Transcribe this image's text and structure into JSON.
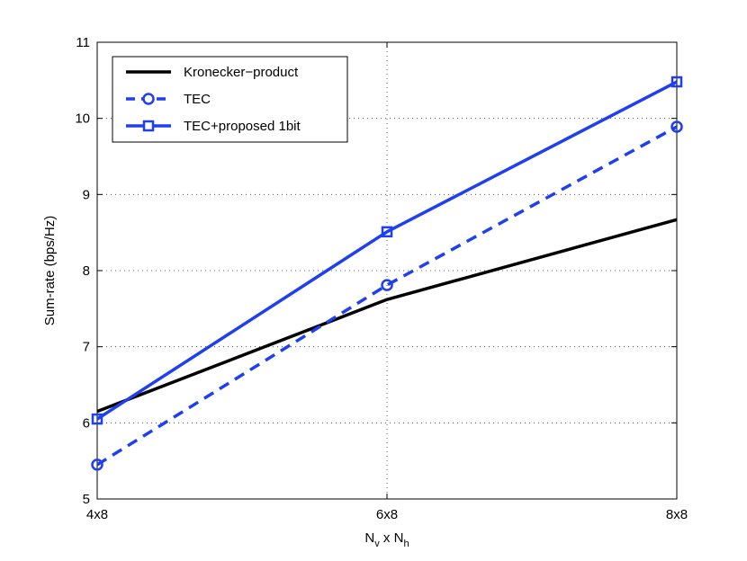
{
  "chart_data": {
    "type": "line",
    "title": "",
    "xlabel": {
      "main1": "N",
      "sub1": "v",
      "mid": " x ",
      "main2": "N",
      "sub2": "h"
    },
    "ylabel": "Sum-rate (bps/Hz)",
    "categories": [
      "4x8",
      "6x8",
      "8x8"
    ],
    "ylim": [
      5,
      11
    ],
    "yticks": [
      5,
      6,
      7,
      8,
      9,
      10,
      11
    ],
    "grid": true,
    "legend_position": "top-left",
    "series": [
      {
        "name": "Kronecker−product",
        "values": [
          6.15,
          7.62,
          8.67
        ],
        "color": "#000000",
        "style": "solid",
        "marker": "none"
      },
      {
        "name": "TEC",
        "values": [
          5.45,
          7.81,
          9.89
        ],
        "color": "#1f3ff0",
        "style": "dashed",
        "marker": "circle"
      },
      {
        "name": "TEC+proposed 1bit",
        "values": [
          6.05,
          8.51,
          10.48
        ],
        "color": "#1f3ff0",
        "style": "solid",
        "marker": "square"
      }
    ]
  }
}
